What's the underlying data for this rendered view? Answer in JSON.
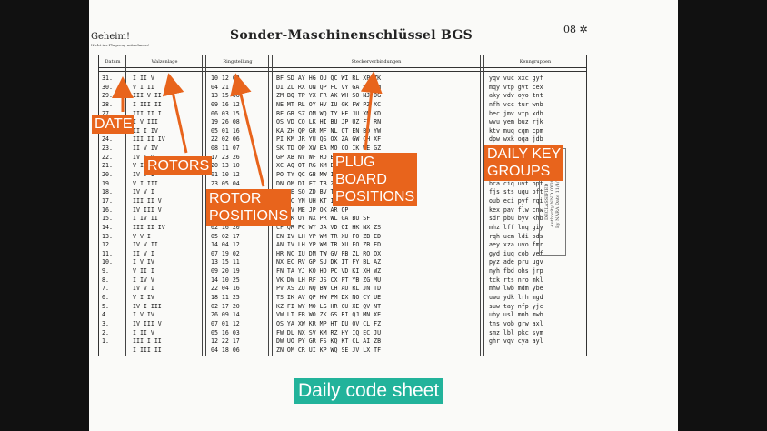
{
  "document": {
    "classification": "Geheim!",
    "note": "Nicht ins Flugzeug mitnehmen!",
    "title": "Sonder-Maschinenschlüssel BGS",
    "page_number": "08 ✲",
    "columns": [
      "Datum",
      "Walzenlage",
      "Ringstellung",
      "Steckerverbindungen",
      "Kenngruppen"
    ],
    "stamp_text": [
      "DECLASSIFIED",
      "Authority NND 0X385",
      "By NARA Date 11/4/74"
    ],
    "rows": [
      {
        "d": "31.",
        "w": "I II V",
        "r": "10 12 02",
        "s": "BF SD AY HG OU QC WI RL XP ZK",
        "k": "yqv vuc xxc gyf"
      },
      {
        "d": "30.",
        "w": "V I II",
        "r": "04 21 01",
        "s": "DI ZL RX UN QP FC VY GA SO EM",
        "k": "mqy vtp gvt cex"
      },
      {
        "d": "29.",
        "w": "III V II",
        "r": "13 15 06",
        "s": "ZM BQ TP YX FR AK WH SO NJ DG",
        "k": "aky vdv oyo tnt"
      },
      {
        "d": "28.",
        "w": "I III II",
        "r": "09 16 12",
        "s": "NE MT RL OY HV IU GK FW PZ XC",
        "k": "nfh vcc tur wnb"
      },
      {
        "d": "27.",
        "w": "III II I",
        "r": "06 03 15",
        "s": "BF GR SZ OM WQ TY HE JU XN KD",
        "k": "bec jmv vtp xdb"
      },
      {
        "d": "26.",
        "w": "I V III",
        "r": "19 26 08",
        "s": "OS VD CQ LK HI BU JP UZ FT RN",
        "k": "wvu yem buz rjk"
      },
      {
        "d": "25.",
        "w": "II I IV",
        "r": "05 01 16",
        "s": "KA ZH QP GR MF NL OT EN BD YW",
        "k": "ktv muq cqm cpm"
      },
      {
        "d": "24.",
        "w": "III II IV",
        "r": "22 02 06",
        "s": "PI KM JR YU QS OX ZA GW CH XF",
        "k": "dpw wxk oqa jdb"
      },
      {
        "d": "23.",
        "w": "II V IV",
        "r": "08 11 07",
        "s": "SK TD OP XW EA MO CO IK WE GZ",
        "k": "blu mvu wxt wqg"
      },
      {
        "d": "22.",
        "w": "IV I V",
        "r": "17 23 26",
        "s": "GP XB NY WF RO BA ZK QR LT",
        "k": "nnc zdk lnl nvj"
      },
      {
        "d": "21.",
        "w": "V II III",
        "r": "20 13 10",
        "s": "XC AQ OT RG KM BL NS JW",
        "k": "bph aqi vmu xrh"
      },
      {
        "d": "20.",
        "w": "IV V I",
        "r": "01 10 12",
        "s": "PO TY QC GB MW IK GJ PV",
        "k": "jmr whk vsx usr"
      },
      {
        "d": "19.",
        "w": "V I III",
        "r": "23 05 04",
        "s": "DN OM DI FT TB ZL XQ",
        "k": "bca ciq uvt ppt"
      },
      {
        "d": "18.",
        "w": "IV V I",
        "r": "08 23 09",
        "s": "XP FE SQ ZD BV TM KI",
        "k": "fjs sts uqu oft"
      },
      {
        "d": "17.",
        "w": "III II V",
        "r": "09 11 07",
        "s": "UT ZC YN UH KT IA QH",
        "k": "oub eci pyf rqi"
      },
      {
        "d": "16.",
        "w": "IV III V",
        "r": "18 05 15",
        "s": "CK AV ME JP OK AR OP",
        "k": "kex pav flw cnw"
      },
      {
        "d": "15.",
        "w": "I IV II",
        "r": "04 03 07",
        "s": "JY UK UY NX PR WL GA BU SF",
        "k": "sdr pbu byv khb"
      },
      {
        "d": "14.",
        "w": "III II IV",
        "r": "02 16 20",
        "s": "CF QR PC WY JA VD OI HK NX ZS",
        "k": "mhz lff lnq giy"
      },
      {
        "d": "13.",
        "w": "V V I",
        "r": "05 02 17",
        "s": "EN IV LH YP WM TR XU FO ZB ED",
        "k": "rqh ucm ldi ods"
      },
      {
        "d": "12.",
        "w": "IV V II",
        "r": "14 04 12",
        "s": "AN IV LH YP WM TR XU FO ZB ED",
        "k": "aey xza uvo fmr"
      },
      {
        "d": "11.",
        "w": "II V I",
        "r": "07 19 02",
        "s": "HR NC IU DM TW GV FB ZL RQ OX",
        "k": "gyd iuq cob vef"
      },
      {
        "d": "10.",
        "w": "I V IV",
        "r": "13 15 11",
        "s": "NX EC RV GP SU DK IT FY BL AZ",
        "k": "pyz ade pru ugv"
      },
      {
        "d": "9.",
        "w": "V II I",
        "r": "09 20 19",
        "s": "FN TA YJ KO HO PC VD KI XH WZ",
        "k": "nyh fbd ohs jrp"
      },
      {
        "d": "8.",
        "w": "I IV V",
        "r": "14 10 25",
        "s": "VK DW LH RF JS CX PT YB ZG MU",
        "k": "tck rts nro mkl"
      },
      {
        "d": "7.",
        "w": "IV V I",
        "r": "22 04 16",
        "s": "PV XS ZU NQ BW CH AO RL JN TD",
        "k": "mhw lwb mdm ybe"
      },
      {
        "d": "6.",
        "w": "V I IV",
        "r": "18 11 25",
        "s": "TS IK AV QP HW FM DX NO CY UE",
        "k": "uwu ydk lrh mgd"
      },
      {
        "d": "5.",
        "w": "IV I III",
        "r": "02 17 20",
        "s": "KZ FI WY MO LG HR CU XE QV NT",
        "k": "suw tay nfp yjc"
      },
      {
        "d": "4.",
        "w": "I V IV",
        "r": "26 09 14",
        "s": "VW LT FB WO ZK GS RI QJ MN XE",
        "k": "uby usl mnh mwb"
      },
      {
        "d": "3.",
        "w": "IV III V",
        "r": "07 01 12",
        "s": "QS YA XW KR MP HT DU OV CL FZ",
        "k": "tns vob grw axl"
      },
      {
        "d": "2.",
        "w": "I II V",
        "r": "05 16 03",
        "s": "FW DL NX SV KM RZ HY IQ EC JU",
        "k": "smz lbl pkc sym"
      },
      {
        "d": "1.",
        "w": "III I II",
        "r": "12 22 17",
        "s": "DW UO PY GR FS KQ KT CL AI ZB",
        "k": "ghr vqv cya ayl"
      },
      {
        "d": "",
        "w": "I III II",
        "r": "04 18 06",
        "s": "ZN OM CR UI KP WQ SE JV LX TF",
        "k": ""
      }
    ]
  },
  "annotations": {
    "date": "DATE",
    "rotors": "ROTORS",
    "rotor_positions": "ROTOR\nPOSITIONS",
    "plug_board": "PLUG\nBOARD\nPOSITIONS",
    "key_groups": "DAILY KEY\nGROUPS",
    "caption": "Daily code sheet"
  },
  "colors": {
    "tag": "#e8641c",
    "caption": "#22b39b"
  }
}
